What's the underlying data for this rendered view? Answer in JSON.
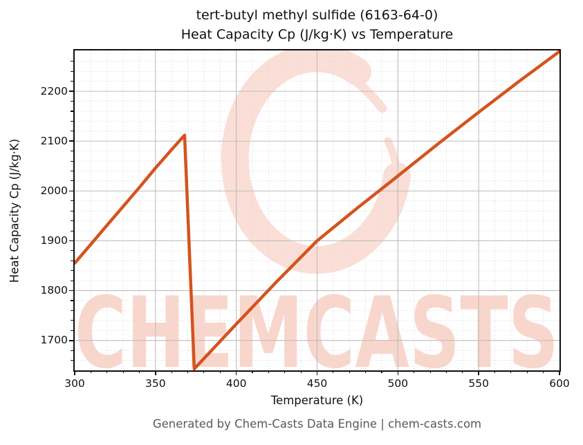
{
  "header": {
    "title_line1": "tert-butyl methyl sulfide (6163-64-0)",
    "title_line2": "Heat Capacity Cp (J/kg·K) vs Temperature"
  },
  "footer": {
    "credit": "Generated by Chem-Casts Data Engine | chem-casts.com"
  },
  "watermark": {
    "text": "CHEMCASTS"
  },
  "colors": {
    "line": "#d3541d",
    "watermark_logo": "#fbded6",
    "watermark_text": "#f9d6cc",
    "grid_major": "#bdbdbd",
    "grid_minor": "#dcdcdc",
    "spine": "#0d0d0d",
    "footer_text": "#595959"
  },
  "chart_data": {
    "type": "line",
    "title": "tert-butyl methyl sulfide (6163-64-0)\nHeat Capacity Cp (J/kg·K) vs Temperature",
    "xlabel": "Temperature (K)",
    "ylabel": "Heat Capacity Cp (J/kg·K)",
    "xlim": [
      300,
      600
    ],
    "ylim": [
      1640,
      2282
    ],
    "x_ticks": [
      300,
      350,
      400,
      450,
      500,
      550,
      600
    ],
    "y_ticks": [
      1700,
      1800,
      1900,
      2000,
      2100,
      2200
    ],
    "x_minor_step": 10,
    "y_minor_step": 20,
    "grid": {
      "major": true,
      "minor": true
    },
    "legend": null,
    "series": [
      {
        "name": "Heat Capacity Cp",
        "color": "#d3541d",
        "points": [
          [
            300,
            1855
          ],
          [
            310,
            1893
          ],
          [
            320,
            1931
          ],
          [
            330,
            1969
          ],
          [
            340,
            2007
          ],
          [
            350,
            2046
          ],
          [
            360,
            2083
          ],
          [
            368,
            2112
          ],
          [
            374,
            1643
          ],
          [
            400,
            1733
          ],
          [
            425,
            1818
          ],
          [
            450,
            1900
          ],
          [
            475,
            1966
          ],
          [
            500,
            2030
          ],
          [
            525,
            2095
          ],
          [
            550,
            2158
          ],
          [
            575,
            2220
          ],
          [
            600,
            2280
          ]
        ]
      }
    ],
    "annotations": {
      "peak": [
        368,
        2112
      ],
      "transition_minimum": [
        374,
        1643
      ]
    }
  }
}
